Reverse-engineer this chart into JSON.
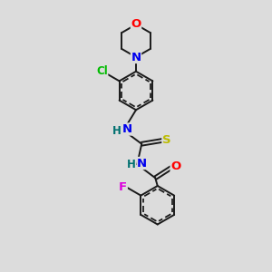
{
  "bg_color": "#dcdcdc",
  "bond_color": "#1a1a1a",
  "atom_colors": {
    "O": "#ff0000",
    "N": "#0000ee",
    "Cl": "#00bb00",
    "S": "#bbbb00",
    "F": "#dd00dd",
    "C": "#1a1a1a",
    "H": "#007070"
  },
  "font_size": 8.5,
  "bond_width": 1.4,
  "label_bg": "#dcdcdc"
}
